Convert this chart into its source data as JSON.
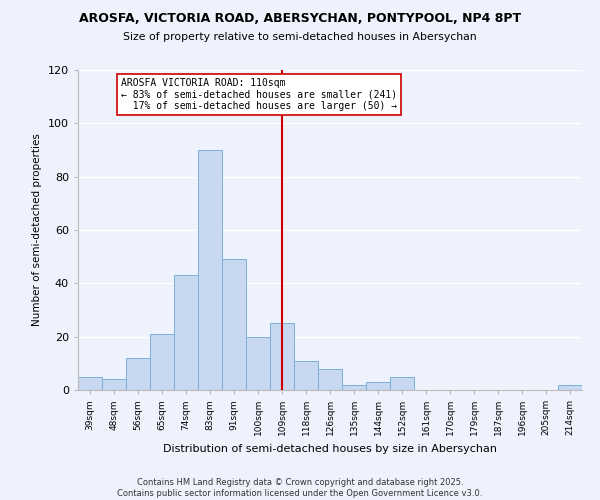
{
  "title_line1": "AROSFA, VICTORIA ROAD, ABERSYCHAN, PONTYPOOL, NP4 8PT",
  "title_line2": "Size of property relative to semi-detached houses in Abersychan",
  "xlabel": "Distribution of semi-detached houses by size in Abersychan",
  "ylabel": "Number of semi-detached properties",
  "bin_labels": [
    "39sqm",
    "48sqm",
    "56sqm",
    "65sqm",
    "74sqm",
    "83sqm",
    "91sqm",
    "100sqm",
    "109sqm",
    "118sqm",
    "126sqm",
    "135sqm",
    "144sqm",
    "152sqm",
    "161sqm",
    "170sqm",
    "179sqm",
    "187sqm",
    "196sqm",
    "205sqm",
    "214sqm"
  ],
  "bin_values": [
    5,
    4,
    12,
    21,
    43,
    90,
    49,
    20,
    25,
    11,
    8,
    2,
    3,
    5,
    0,
    0,
    0,
    0,
    0,
    0,
    2
  ],
  "bar_color": "#c8d8f0",
  "bar_edge_color": "#7ab0d8",
  "property_line_x": 8,
  "property_line_color": "#cc0000",
  "annotation_text": "AROSFA VICTORIA ROAD: 110sqm\n← 83% of semi-detached houses are smaller (241)\n  17% of semi-detached houses are larger (50) →",
  "annotation_box_color": "#ffffff",
  "annotation_box_edge": "#cc0000",
  "ylim": [
    0,
    120
  ],
  "yticks": [
    0,
    20,
    40,
    60,
    80,
    100,
    120
  ],
  "footer_line1": "Contains HM Land Registry data © Crown copyright and database right 2025.",
  "footer_line2": "Contains public sector information licensed under the Open Government Licence v3.0.",
  "background_color": "#eef2fc",
  "grid_color": "#ffffff"
}
